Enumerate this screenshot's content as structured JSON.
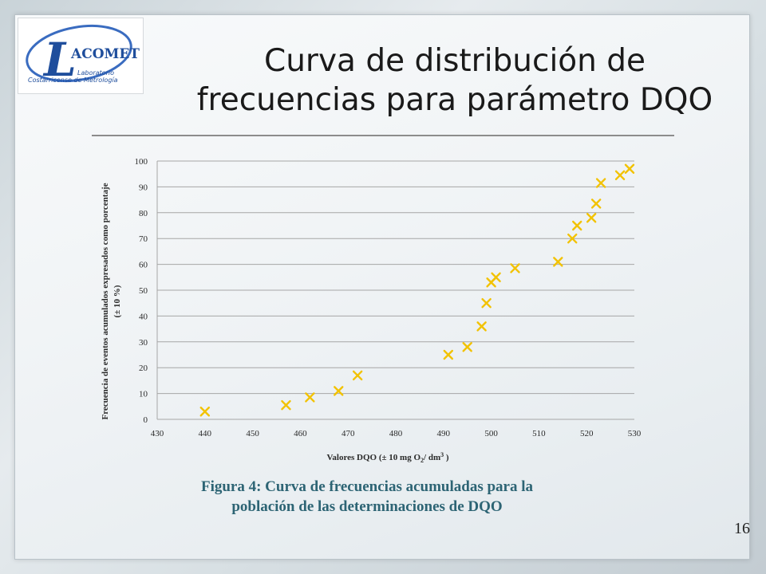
{
  "slide": {
    "title_line1": "Curva de distribución de",
    "title_line2": "frecuencias para parámetro DQO",
    "caption_line1": "Figura 4: Curva de frecuencias acumuladas para la",
    "caption_line2": "población de las determinaciones de DQO",
    "page_number": "16"
  },
  "logo": {
    "letter": "L",
    "name": "ACOMET",
    "line1": "Laboratorio",
    "line2": "Costarricense de Metrología",
    "accent_color": "#1f4e9c"
  },
  "colors": {
    "marker": "#f2c200",
    "grid": "#a6a6a6",
    "axis_text": "#2a2a2a"
  },
  "chart_data": {
    "type": "scatter",
    "xlabel_main": "Valores DQO (± 10 mg O",
    "xlabel_sub": "2",
    "xlabel_mid": "/ dm",
    "xlabel_sup": "3",
    "xlabel_end": " )",
    "ylabel_line1": "Frecuencia de eventos acumulados expresados como porcentaje",
    "ylabel_line2": "(± 10 %)",
    "xlim": [
      430,
      530
    ],
    "ylim": [
      0,
      100
    ],
    "x_ticks": [
      "430",
      "440",
      "450",
      "460",
      "470",
      "480",
      "490",
      "500",
      "510",
      "520",
      "530"
    ],
    "y_ticks": [
      "0",
      "10",
      "20",
      "30",
      "40",
      "50",
      "60",
      "70",
      "80",
      "90",
      "100"
    ],
    "grid": true,
    "marker": "x",
    "x": [
      440,
      457,
      462,
      468,
      472,
      491,
      495,
      498,
      499,
      500,
      501,
      505,
      514,
      517,
      518,
      521,
      522,
      523,
      527,
      529
    ],
    "y": [
      3,
      5.5,
      8.5,
      11,
      17,
      25,
      28,
      36,
      45,
      53,
      55,
      58.5,
      61,
      70,
      75,
      78,
      83.5,
      91.5,
      94.5,
      97
    ]
  }
}
